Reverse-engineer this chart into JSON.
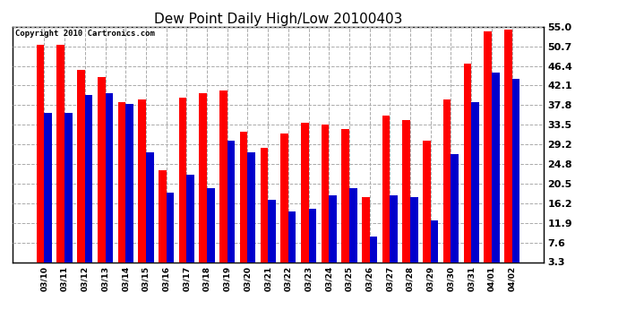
{
  "title": "Dew Point Daily High/Low 20100403",
  "copyright": "Copyright 2010 Cartronics.com",
  "dates": [
    "03/10",
    "03/11",
    "03/12",
    "03/13",
    "03/14",
    "03/15",
    "03/16",
    "03/17",
    "03/18",
    "03/19",
    "03/20",
    "03/21",
    "03/22",
    "03/23",
    "03/24",
    "03/25",
    "03/26",
    "03/27",
    "03/28",
    "03/29",
    "03/30",
    "03/31",
    "04/01",
    "04/02"
  ],
  "highs": [
    51.0,
    51.0,
    45.5,
    44.0,
    38.5,
    39.0,
    23.5,
    39.5,
    40.5,
    41.0,
    32.0,
    28.5,
    31.5,
    34.0,
    33.5,
    32.5,
    17.5,
    35.5,
    34.5,
    30.0,
    39.0,
    47.0,
    54.0,
    54.5
  ],
  "lows": [
    36.0,
    36.0,
    40.0,
    40.5,
    38.0,
    27.5,
    18.5,
    22.5,
    19.5,
    30.0,
    27.5,
    17.0,
    14.5,
    15.0,
    18.0,
    19.5,
    9.0,
    18.0,
    17.5,
    12.5,
    27.0,
    38.5,
    45.0,
    43.5
  ],
  "high_color": "#ff0000",
  "low_color": "#0000cc",
  "bg_color": "#ffffff",
  "plot_bg_color": "#ffffff",
  "grid_color": "#aaaaaa",
  "ytick_labels": [
    "3.3",
    "7.6",
    "11.9",
    "16.2",
    "20.5",
    "24.8",
    "29.2",
    "33.5",
    "37.8",
    "42.1",
    "46.4",
    "50.7",
    "55.0"
  ],
  "ytick_values": [
    3.3,
    7.6,
    11.9,
    16.2,
    20.5,
    24.8,
    29.2,
    33.5,
    37.8,
    42.1,
    46.4,
    50.7,
    55.0
  ],
  "ymin": 3.3,
  "ymax": 55.0,
  "bar_width": 0.38,
  "figwidth": 6.9,
  "figheight": 3.75,
  "dpi": 100
}
